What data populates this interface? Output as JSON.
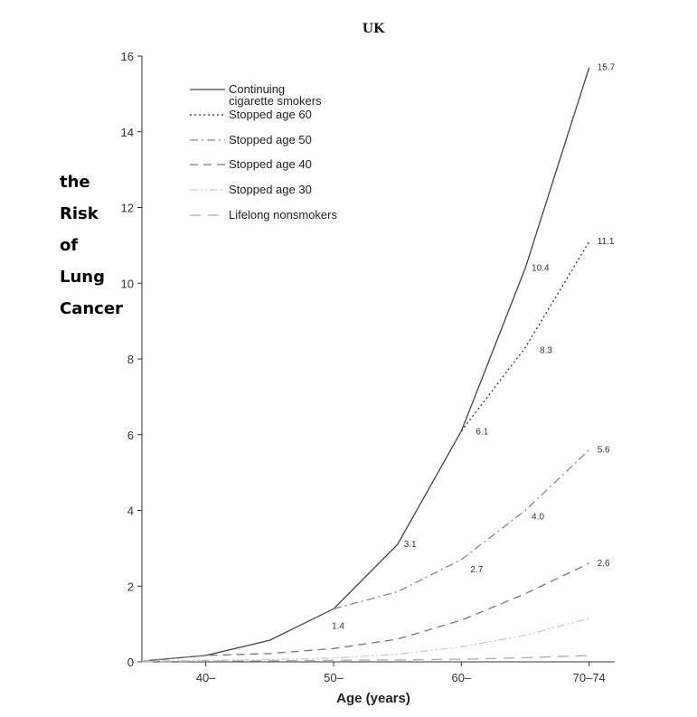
{
  "chart_data": {
    "type": "line",
    "title": "UK",
    "xlabel": "Age (years)",
    "ylabel_lines": [
      "the",
      "Risk",
      "of",
      "Lung",
      "Cancer"
    ],
    "ylim": [
      0,
      16
    ],
    "xlim": [
      35,
      72
    ],
    "y_ticks": [
      0,
      2,
      4,
      6,
      8,
      10,
      12,
      14,
      16
    ],
    "x_ticks": [
      {
        "value": 40,
        "label": "40–"
      },
      {
        "value": 50,
        "label": "50–"
      },
      {
        "value": 60,
        "label": "60–"
      },
      {
        "value": 70,
        "label": "70–74"
      }
    ],
    "legend_position": "top-left",
    "series": [
      {
        "name": "Continuing cigarette smokers",
        "legend_lines": [
          "Continuing",
          "cigarette smokers"
        ],
        "style": "solid",
        "color": "#444444",
        "points": [
          [
            35,
            0.02
          ],
          [
            40,
            0.17
          ],
          [
            45,
            0.57
          ],
          [
            50,
            1.4
          ],
          [
            55,
            3.1
          ],
          [
            60,
            6.1
          ],
          [
            65,
            10.4
          ],
          [
            70,
            15.7
          ]
        ]
      },
      {
        "name": "Stopped age 60",
        "legend_lines": [
          "Stopped age 60"
        ],
        "style": "dotted",
        "color": "#333333",
        "points": [
          [
            60,
            6.1
          ],
          [
            65,
            8.3
          ],
          [
            70,
            11.1
          ]
        ]
      },
      {
        "name": "Stopped age 50",
        "legend_lines": [
          "Stopped age 50"
        ],
        "style": "dashdot",
        "color": "#888888",
        "points": [
          [
            50,
            1.4
          ],
          [
            55,
            1.85
          ],
          [
            60,
            2.7
          ],
          [
            65,
            4.0
          ],
          [
            70,
            5.6
          ]
        ]
      },
      {
        "name": "Stopped age 40",
        "legend_lines": [
          "Stopped age 40"
        ],
        "style": "dashed",
        "color": "#777777",
        "points": [
          [
            35,
            0.02
          ],
          [
            40,
            0.17
          ],
          [
            45,
            0.22
          ],
          [
            50,
            0.35
          ],
          [
            55,
            0.6
          ],
          [
            60,
            1.1
          ],
          [
            65,
            1.8
          ],
          [
            70,
            2.6
          ]
        ]
      },
      {
        "name": "Stopped age 30",
        "legend_lines": [
          "Stopped age 30"
        ],
        "style": "dashdotdot",
        "color": "#cccccc",
        "points": [
          [
            35,
            0.02
          ],
          [
            40,
            0.04
          ],
          [
            45,
            0.06
          ],
          [
            50,
            0.1
          ],
          [
            55,
            0.2
          ],
          [
            60,
            0.4
          ],
          [
            65,
            0.7
          ],
          [
            70,
            1.15
          ]
        ]
      },
      {
        "name": "Lifelong nonsmokers",
        "legend_lines": [
          "Lifelong nonsmokers"
        ],
        "style": "longdash",
        "color": "#aaaaaa",
        "points": [
          [
            35,
            0.0
          ],
          [
            40,
            0.02
          ],
          [
            45,
            0.03
          ],
          [
            50,
            0.04
          ],
          [
            55,
            0.05
          ],
          [
            60,
            0.07
          ],
          [
            65,
            0.11
          ],
          [
            70,
            0.17
          ]
        ]
      }
    ],
    "data_labels": [
      {
        "x": 70,
        "y": 15.7,
        "text": "15.7"
      },
      {
        "x": 70,
        "y": 11.1,
        "text": "11.1"
      },
      {
        "x": 65,
        "y": 10.4,
        "text": "10.4"
      },
      {
        "x": 65,
        "y": 8.3,
        "text": "8.3"
      },
      {
        "x": 60,
        "y": 6.1,
        "text": "6.1"
      },
      {
        "x": 70,
        "y": 5.6,
        "text": "5.6"
      },
      {
        "x": 65,
        "y": 4.0,
        "text": "4.0"
      },
      {
        "x": 55,
        "y": 3.1,
        "text": "3.1"
      },
      {
        "x": 60,
        "y": 2.7,
        "text": "2.7"
      },
      {
        "x": 70,
        "y": 2.6,
        "text": "2.6"
      },
      {
        "x": 50,
        "y": 1.4,
        "text": "1.4"
      }
    ]
  }
}
